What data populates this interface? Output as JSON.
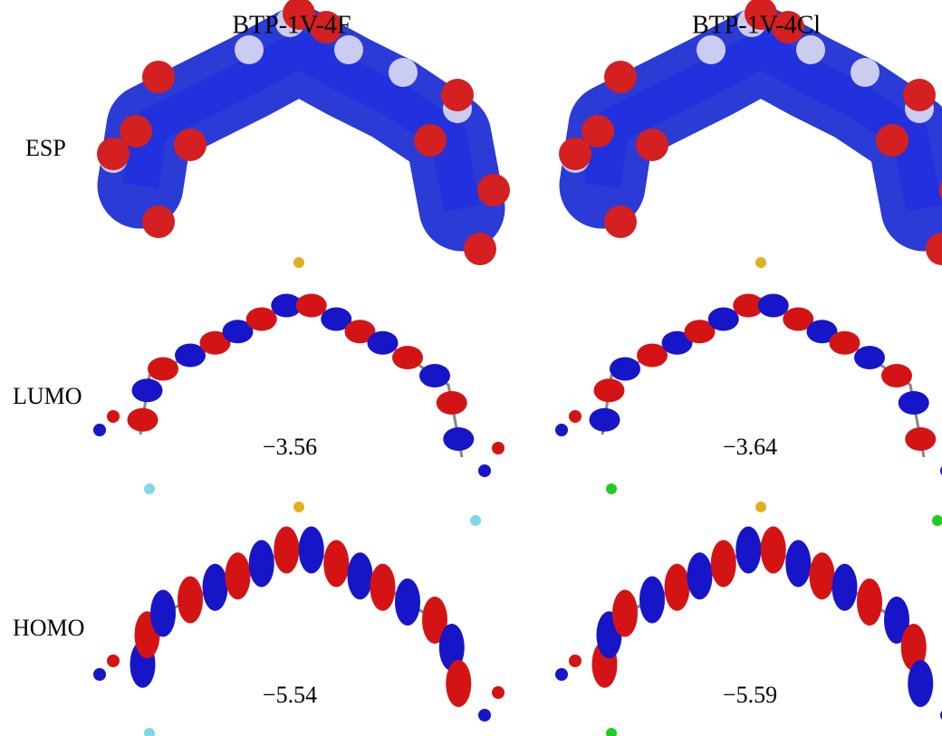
{
  "header": {
    "columns": [
      "BTP-1V-4F",
      "BTP-1V-4Cl"
    ]
  },
  "rows": [
    {
      "label": "ESP"
    },
    {
      "label": "LUMO",
      "values": [
        "−3.56",
        "−3.64"
      ]
    },
    {
      "label": "HOMO",
      "values": [
        "−5.54",
        "−5.59"
      ]
    }
  ]
}
